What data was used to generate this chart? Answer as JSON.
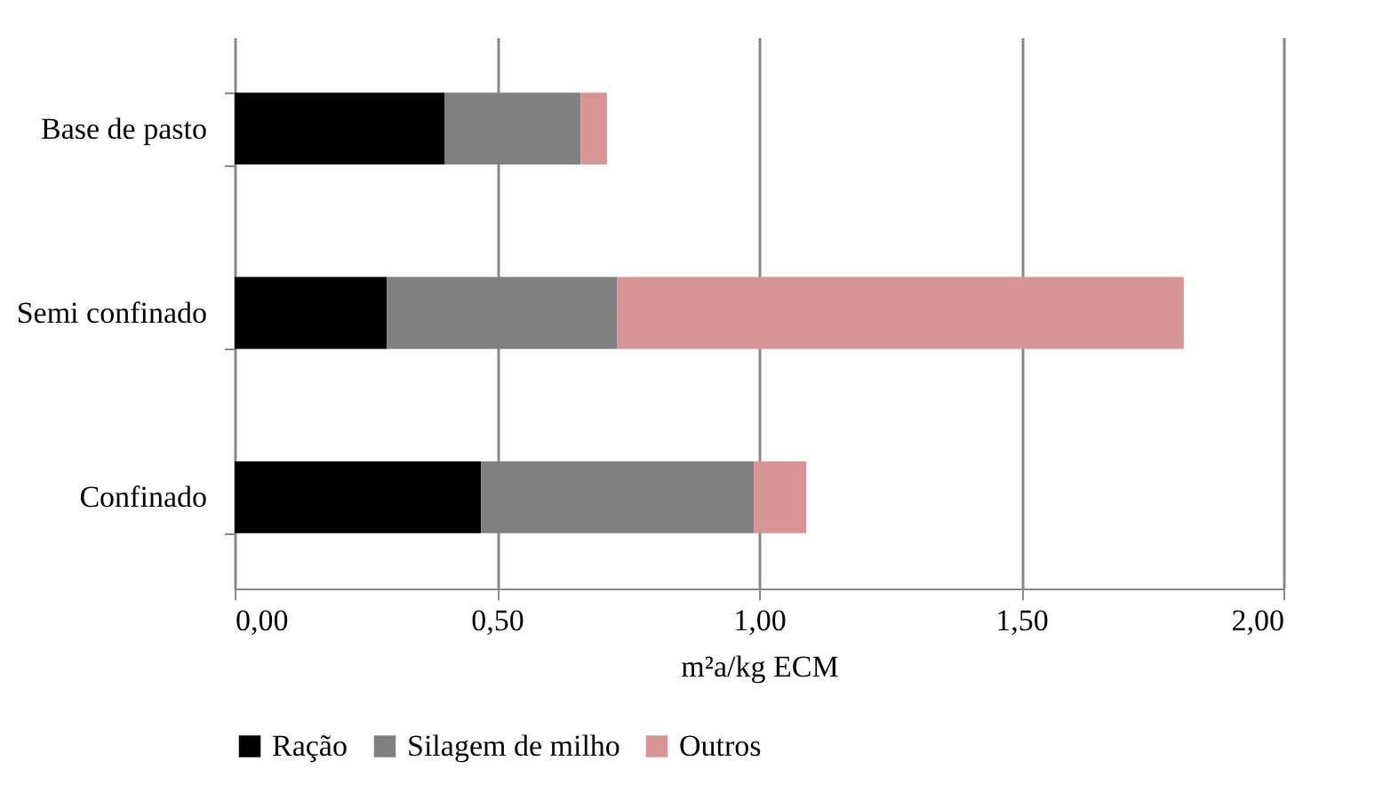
{
  "chart_data": {
    "type": "bar",
    "orientation": "horizontal",
    "stacked": true,
    "xlabel": "m²a/kg ECM",
    "categories": [
      "Base de pasto",
      "Semi confinado",
      "Confinado"
    ],
    "series": [
      {
        "name": "Ração",
        "color": "#000000",
        "values": [
          0.4,
          0.29,
          0.47
        ]
      },
      {
        "name": "Silagem de milho",
        "color": "#808080",
        "values": [
          0.26,
          0.44,
          0.52
        ]
      },
      {
        "name": "Outros",
        "color": "#d99594",
        "values": [
          0.05,
          1.08,
          0.1
        ]
      }
    ],
    "xlim": [
      0,
      2
    ],
    "xticks": [
      {
        "value": 0,
        "label": "0,00"
      },
      {
        "value": 0.5,
        "label": "0,50"
      },
      {
        "value": 1,
        "label": "1,00"
      },
      {
        "value": 1.5,
        "label": "1,50"
      },
      {
        "value": 2,
        "label": "2,00"
      }
    ],
    "grid": "x",
    "legend": "bottom"
  }
}
